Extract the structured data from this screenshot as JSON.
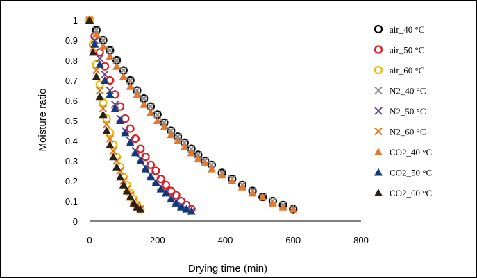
{
  "chart_data": {
    "type": "scatter",
    "title": "",
    "xlabel": "Drying time (min)",
    "ylabel": "Moisture ratio",
    "xlim": [
      0,
      800
    ],
    "ylim": [
      0,
      1
    ],
    "x_ticks": [
      "0",
      "200",
      "400",
      "600",
      "800"
    ],
    "y_ticks": [
      "0",
      "0.1",
      "0.2",
      "0.3",
      "0.4",
      "0.5",
      "0.6",
      "0.7",
      "0.8",
      "0.9",
      "1"
    ],
    "grid": false,
    "legend_position": "right",
    "series": [
      {
        "name": "air_40 °C",
        "marker": "circle",
        "color": "#000000",
        "x": [
          0,
          20,
          40,
          60,
          80,
          100,
          120,
          140,
          160,
          180,
          200,
          220,
          240,
          260,
          280,
          300,
          320,
          340,
          360,
          390,
          420,
          450,
          480,
          510,
          540,
          570,
          600
        ],
        "y": [
          1.0,
          0.95,
          0.9,
          0.85,
          0.8,
          0.75,
          0.7,
          0.65,
          0.61,
          0.57,
          0.53,
          0.49,
          0.45,
          0.42,
          0.39,
          0.36,
          0.33,
          0.3,
          0.28,
          0.24,
          0.21,
          0.18,
          0.15,
          0.12,
          0.1,
          0.08,
          0.06
        ]
      },
      {
        "name": "air_50 °C",
        "marker": "circle",
        "color": "#e31a1c",
        "x": [
          0,
          15,
          30,
          45,
          60,
          75,
          90,
          105,
          120,
          135,
          150,
          165,
          180,
          195,
          210,
          225,
          240,
          255,
          270,
          285,
          300
        ],
        "y": [
          1.0,
          0.92,
          0.84,
          0.77,
          0.7,
          0.63,
          0.57,
          0.51,
          0.46,
          0.41,
          0.36,
          0.32,
          0.28,
          0.25,
          0.21,
          0.18,
          0.15,
          0.13,
          0.1,
          0.08,
          0.06
        ]
      },
      {
        "name": "air_60 °C",
        "marker": "circle",
        "color": "#f5b800",
        "x": [
          0,
          10,
          20,
          30,
          40,
          50,
          60,
          70,
          80,
          90,
          100,
          110,
          120,
          130,
          140,
          150
        ],
        "y": [
          1.0,
          0.88,
          0.78,
          0.68,
          0.59,
          0.51,
          0.44,
          0.38,
          0.32,
          0.27,
          0.22,
          0.18,
          0.14,
          0.11,
          0.08,
          0.06
        ]
      },
      {
        "name": "N2_40 °C",
        "marker": "x",
        "color": "#8c8c8c",
        "x": [
          0,
          20,
          40,
          60,
          80,
          100,
          120,
          140,
          160,
          180,
          200,
          220,
          240,
          260,
          280,
          300,
          320,
          340,
          360,
          390,
          420,
          450,
          480,
          510,
          540,
          570,
          600
        ],
        "y": [
          1.0,
          0.95,
          0.9,
          0.85,
          0.8,
          0.75,
          0.7,
          0.65,
          0.61,
          0.57,
          0.53,
          0.49,
          0.45,
          0.42,
          0.39,
          0.36,
          0.33,
          0.3,
          0.28,
          0.24,
          0.21,
          0.18,
          0.15,
          0.12,
          0.1,
          0.08,
          0.06
        ]
      },
      {
        "name": "N2_50 °C",
        "marker": "x",
        "color": "#6a4c93",
        "x": [
          0,
          15,
          30,
          45,
          60,
          75,
          90,
          105,
          120,
          135,
          150,
          165,
          180,
          195,
          210,
          225,
          240,
          255,
          270,
          285,
          300
        ],
        "y": [
          1.0,
          0.9,
          0.81,
          0.73,
          0.65,
          0.58,
          0.51,
          0.45,
          0.4,
          0.35,
          0.31,
          0.27,
          0.23,
          0.2,
          0.17,
          0.14,
          0.12,
          0.1,
          0.08,
          0.06,
          0.05
        ]
      },
      {
        "name": "N2_60 °C",
        "marker": "x",
        "color": "#e8731a",
        "x": [
          0,
          10,
          20,
          30,
          40,
          50,
          60,
          70,
          80,
          90,
          100,
          110,
          120,
          130,
          140,
          150
        ],
        "y": [
          1.0,
          0.86,
          0.75,
          0.65,
          0.56,
          0.48,
          0.41,
          0.35,
          0.3,
          0.25,
          0.2,
          0.16,
          0.13,
          0.1,
          0.08,
          0.06
        ]
      },
      {
        "name": "CO2_40 °C",
        "marker": "triangle",
        "color": "#e07a2e",
        "x": [
          0,
          20,
          40,
          60,
          80,
          100,
          120,
          140,
          160,
          180,
          200,
          220,
          240,
          260,
          280,
          300,
          320,
          340,
          360,
          390,
          420,
          450,
          480,
          510,
          540,
          570,
          600
        ],
        "y": [
          1.0,
          0.93,
          0.87,
          0.82,
          0.77,
          0.72,
          0.67,
          0.63,
          0.58,
          0.54,
          0.5,
          0.47,
          0.43,
          0.4,
          0.37,
          0.34,
          0.31,
          0.29,
          0.26,
          0.23,
          0.2,
          0.17,
          0.14,
          0.12,
          0.09,
          0.07,
          0.06
        ]
      },
      {
        "name": "CO2_50 °C",
        "marker": "triangle",
        "color": "#0f3a7a",
        "x": [
          0,
          15,
          30,
          45,
          60,
          75,
          90,
          105,
          120,
          135,
          150,
          165,
          180,
          195,
          210,
          225,
          240,
          255,
          270,
          285,
          300
        ],
        "y": [
          1.0,
          0.88,
          0.78,
          0.7,
          0.63,
          0.56,
          0.5,
          0.44,
          0.39,
          0.34,
          0.3,
          0.26,
          0.22,
          0.19,
          0.16,
          0.14,
          0.11,
          0.09,
          0.07,
          0.06,
          0.05
        ]
      },
      {
        "name": "CO2_60 °C",
        "marker": "triangle",
        "color": "#2a2018",
        "x": [
          0,
          10,
          20,
          30,
          40,
          50,
          60,
          70,
          80,
          90,
          100,
          110,
          120,
          130,
          140,
          150
        ],
        "y": [
          1.0,
          0.84,
          0.72,
          0.62,
          0.53,
          0.45,
          0.38,
          0.32,
          0.27,
          0.22,
          0.18,
          0.15,
          0.12,
          0.09,
          0.07,
          0.06
        ]
      }
    ]
  }
}
